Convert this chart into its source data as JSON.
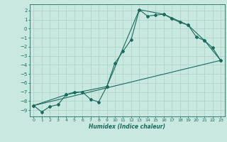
{
  "xlabel": "Humidex (Indice chaleur)",
  "bg_color": "#c8e8e0",
  "line_color": "#1a6b5e",
  "grid_color": "#aed4cc",
  "xlim": [
    -0.5,
    23.5
  ],
  "ylim": [
    -9.7,
    2.7
  ],
  "xticks": [
    0,
    1,
    2,
    3,
    4,
    5,
    6,
    7,
    8,
    9,
    10,
    11,
    12,
    13,
    14,
    15,
    16,
    17,
    18,
    19,
    20,
    21,
    22,
    23
  ],
  "yticks": [
    2,
    1,
    0,
    -1,
    -2,
    -3,
    -4,
    -5,
    -6,
    -7,
    -8,
    -9
  ],
  "line1_x": [
    0,
    1,
    2,
    3,
    4,
    5,
    6,
    7,
    8,
    9,
    10,
    11,
    12,
    13,
    14,
    15,
    16,
    17,
    18,
    19,
    20,
    21,
    22,
    23
  ],
  "line1_y": [
    -8.5,
    -9.2,
    -8.6,
    -8.4,
    -7.3,
    -7.0,
    -7.0,
    -7.8,
    -8.1,
    -6.4,
    -3.8,
    -2.5,
    -1.2,
    2.1,
    1.4,
    1.5,
    1.6,
    1.1,
    0.7,
    0.4,
    -0.9,
    -1.3,
    -2.1,
    -3.5
  ],
  "line2_x": [
    0,
    4,
    9,
    13,
    16,
    19,
    21,
    23
  ],
  "line2_y": [
    -8.5,
    -7.3,
    -6.4,
    2.1,
    1.6,
    0.4,
    -1.3,
    -3.5
  ],
  "line3_x": [
    0,
    23
  ],
  "line3_y": [
    -8.5,
    -3.5
  ]
}
